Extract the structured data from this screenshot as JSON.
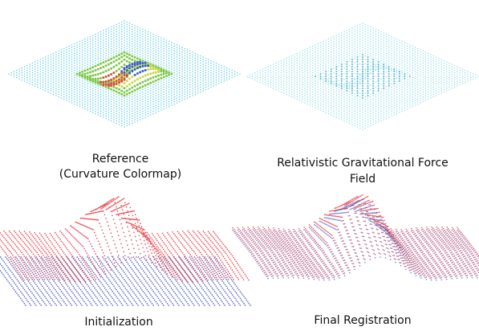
{
  "panels": [
    {
      "caption_lines": [
        "Reference",
        "(Curvature Colormap)"
      ]
    },
    {
      "caption_lines": [
        "Relativistic Gravitational Force",
        "Field"
      ]
    },
    {
      "caption_lines": [
        "Initialization"
      ]
    },
    {
      "caption_lines": [
        "Final Registration"
      ]
    }
  ]
}
